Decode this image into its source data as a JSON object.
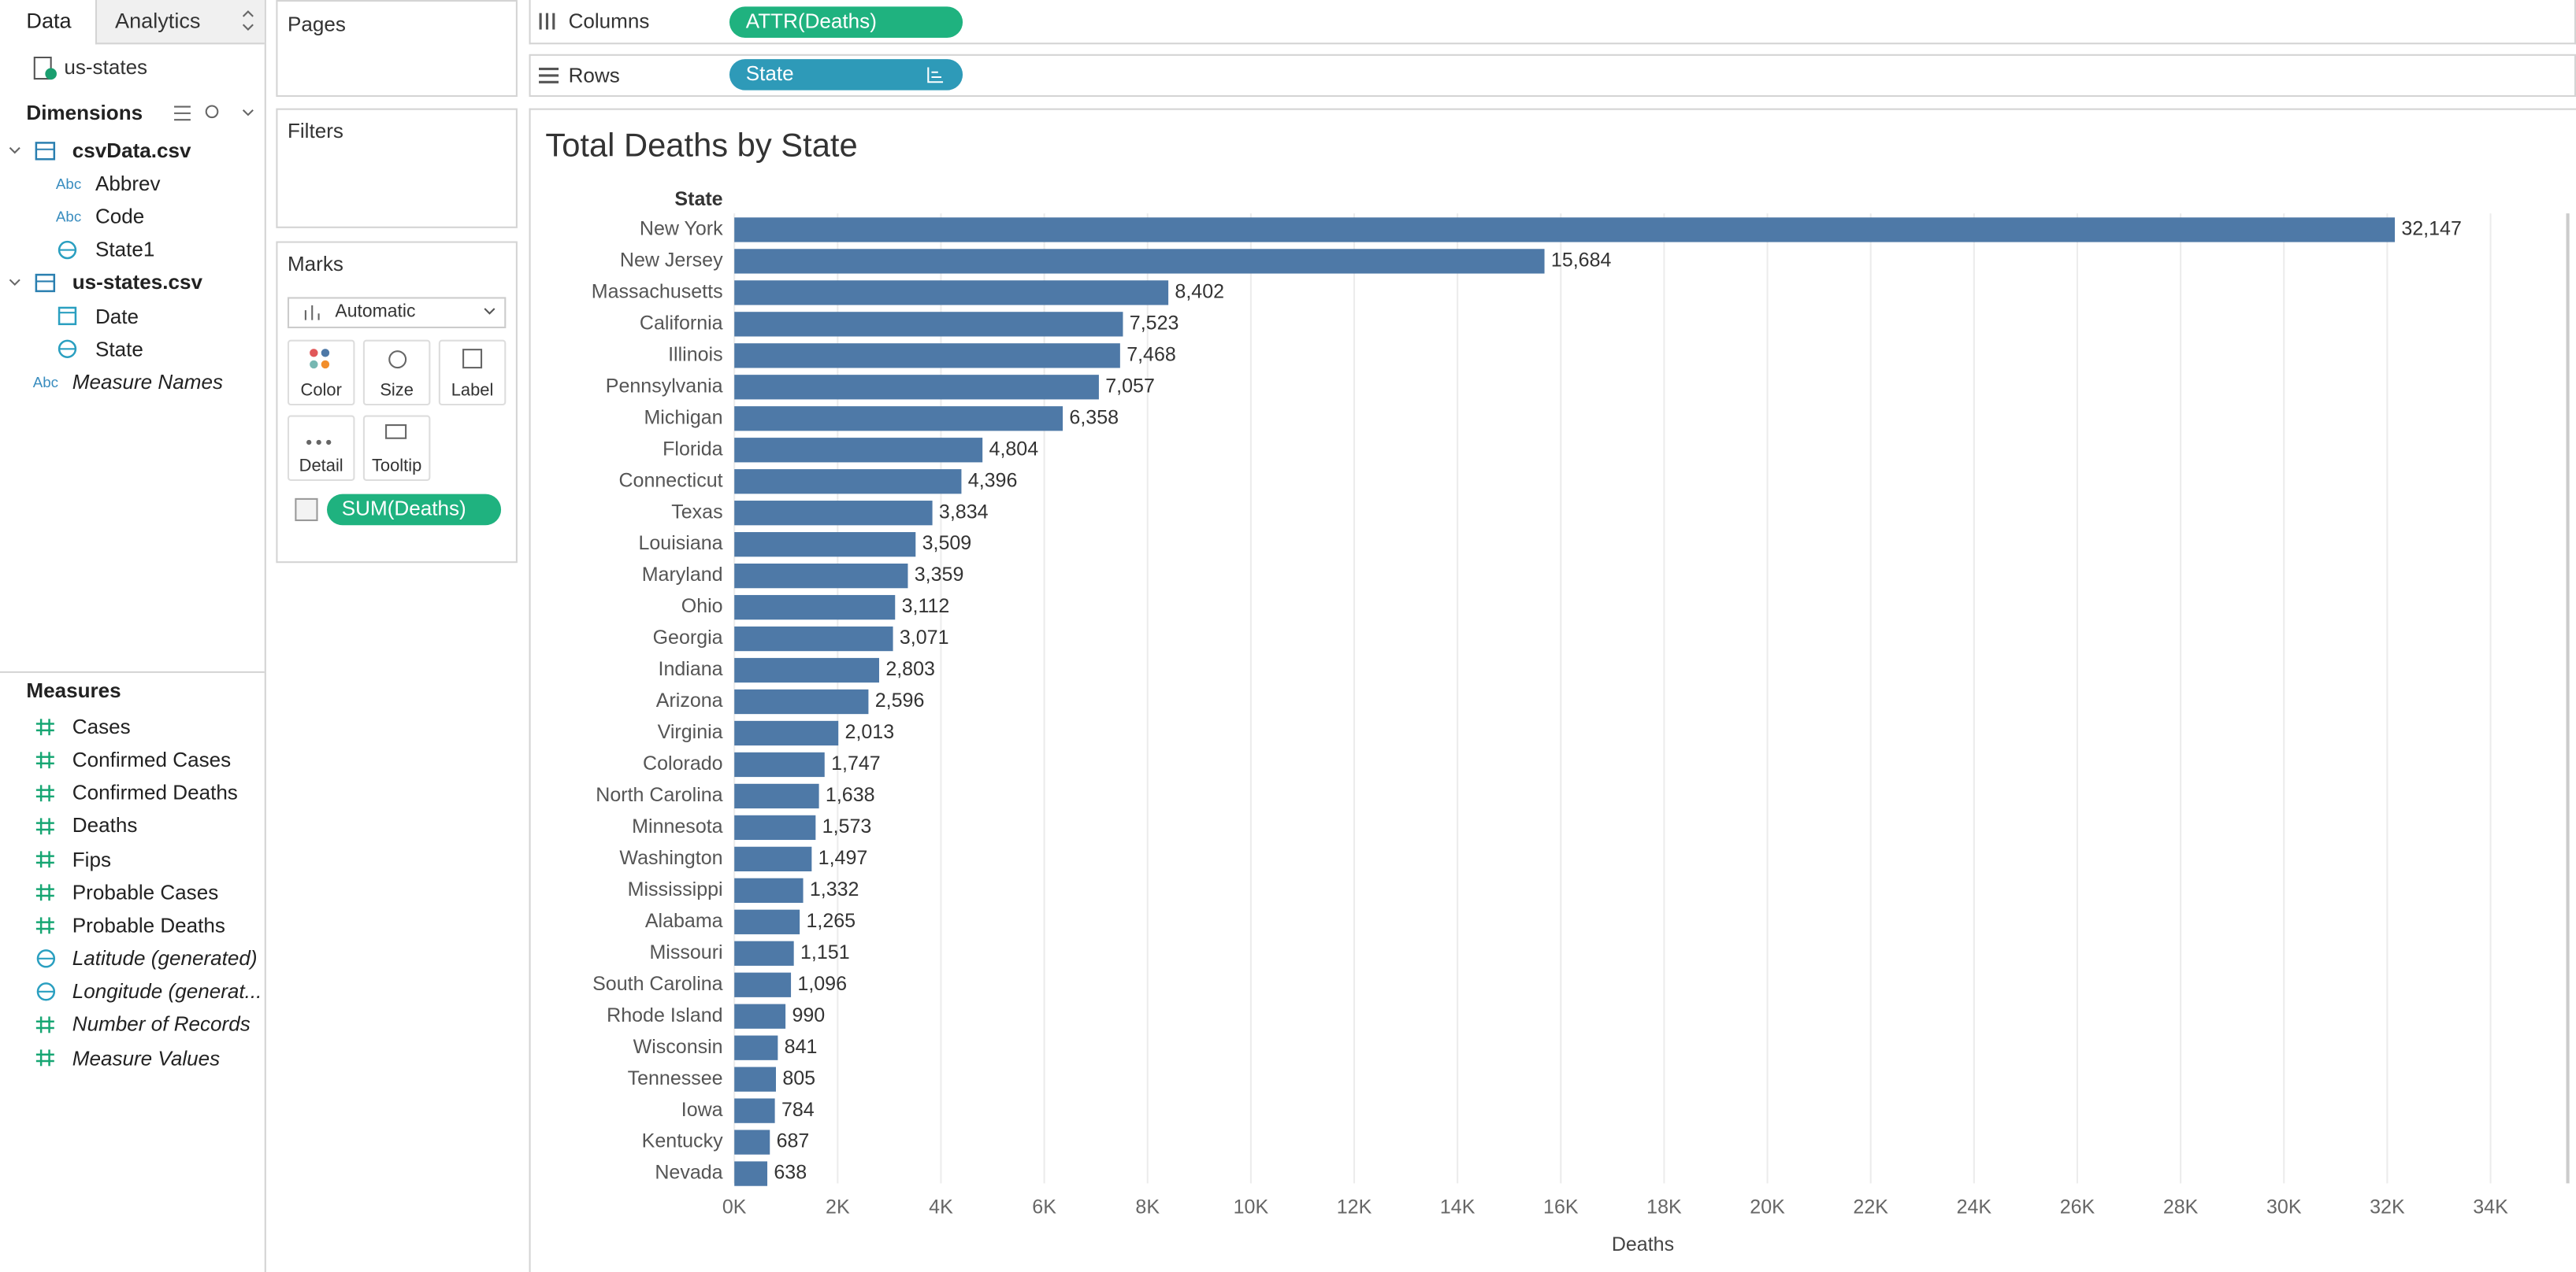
{
  "tabs": [
    "Data",
    "Analytics"
  ],
  "data_source": "us-states",
  "string_icon": "Abc",
  "dimensions": {
    "title": "Dimensions",
    "items": [
      {
        "name": "csvData.csv",
        "kind": "table"
      },
      {
        "name": "Abbrev",
        "kind": "string"
      },
      {
        "name": "Code",
        "kind": "string"
      },
      {
        "name": "State1",
        "kind": "geo"
      },
      {
        "name": "us-states.csv",
        "kind": "table"
      },
      {
        "name": "Date",
        "kind": "date"
      },
      {
        "name": "State",
        "kind": "geo"
      },
      {
        "name": "Measure Names",
        "kind": "string",
        "italic": true
      }
    ]
  },
  "measures": {
    "title": "Measures",
    "items": [
      {
        "name": "Cases",
        "kind": "measure"
      },
      {
        "name": "Confirmed Cases",
        "kind": "measure"
      },
      {
        "name": "Confirmed Deaths",
        "kind": "measure"
      },
      {
        "name": "Deaths",
        "kind": "measure"
      },
      {
        "name": "Fips",
        "kind": "measure"
      },
      {
        "name": "Probable Cases",
        "kind": "measure"
      },
      {
        "name": "Probable Deaths",
        "kind": "measure"
      },
      {
        "name": "Latitude (generated)",
        "kind": "geo",
        "italic": true
      },
      {
        "name": "Longitude (generat...",
        "kind": "geo",
        "italic": true
      },
      {
        "name": "Number of Records",
        "kind": "measure",
        "italic": true
      },
      {
        "name": "Measure Values",
        "kind": "measure",
        "italic": true
      }
    ]
  },
  "pages": {
    "title": "Pages"
  },
  "filters": {
    "title": "Filters"
  },
  "marks": {
    "title": "Marks",
    "mark_type": "Automatic",
    "buttons": [
      "Color",
      "Size",
      "Label",
      "Detail",
      "Tooltip"
    ],
    "pill": "SUM(Deaths)"
  },
  "columns": {
    "title": "Columns",
    "pill": "ATTR(Deaths)"
  },
  "rows": {
    "title": "Rows",
    "pill": "State"
  },
  "chart_data": {
    "type": "hbar",
    "title": "Total Deaths by State",
    "y_header": "State",
    "x_label": "Deaths",
    "color": "#4e79a7",
    "grid": true,
    "categories": [
      "New York",
      "New Jersey",
      "Massachusetts",
      "California",
      "Illinois",
      "Pennsylvania",
      "Michigan",
      "Florida",
      "Connecticut",
      "Texas",
      "Louisiana",
      "Maryland",
      "Ohio",
      "Georgia",
      "Indiana",
      "Arizona",
      "Virginia",
      "Colorado",
      "North Carolina",
      "Minnesota",
      "Washington",
      "Mississippi",
      "Alabama",
      "Missouri",
      "South Carolina",
      "Rhode Island",
      "Wisconsin",
      "Tennessee",
      "Iowa",
      "Kentucky",
      "Nevada"
    ],
    "values": [
      32147,
      15684,
      8402,
      7523,
      7468,
      7057,
      6358,
      4804,
      4396,
      3834,
      3509,
      3359,
      3112,
      3071,
      2803,
      2596,
      2013,
      1747,
      1638,
      1573,
      1497,
      1332,
      1265,
      1151,
      1096,
      990,
      841,
      805,
      784,
      687,
      638
    ],
    "value_labels": [
      "32,147",
      "15,684",
      "8,402",
      "7,523",
      "7,468",
      "7,057",
      "6,358",
      "4,804",
      "4,396",
      "3,834",
      "3,509",
      "3,359",
      "3,112",
      "3,071",
      "2,803",
      "2,596",
      "2,013",
      "1,747",
      "1,638",
      "1,573",
      "1,497",
      "1,332",
      "1,265",
      "1,151",
      "1,096",
      "990",
      "841",
      "805",
      "784",
      "687",
      "638"
    ],
    "xlim": [
      0,
      35400
    ],
    "xticks": [
      {
        "value": 0,
        "label": "0K"
      },
      {
        "value": 2000,
        "label": "2K"
      },
      {
        "value": 4000,
        "label": "4K"
      },
      {
        "value": 6000,
        "label": "6K"
      },
      {
        "value": 8000,
        "label": "8K"
      },
      {
        "value": 10000,
        "label": "10K"
      },
      {
        "value": 12000,
        "label": "12K"
      },
      {
        "value": 14000,
        "label": "14K"
      },
      {
        "value": 16000,
        "label": "16K"
      },
      {
        "value": 18000,
        "label": "18K"
      },
      {
        "value": 20000,
        "label": "20K"
      },
      {
        "value": 22000,
        "label": "22K"
      },
      {
        "value": 24000,
        "label": "24K"
      },
      {
        "value": 26000,
        "label": "26K"
      },
      {
        "value": 28000,
        "label": "28K"
      },
      {
        "value": 30000,
        "label": "30K"
      },
      {
        "value": 32000,
        "label": "32K"
      },
      {
        "value": 34000,
        "label": "34K"
      }
    ]
  }
}
